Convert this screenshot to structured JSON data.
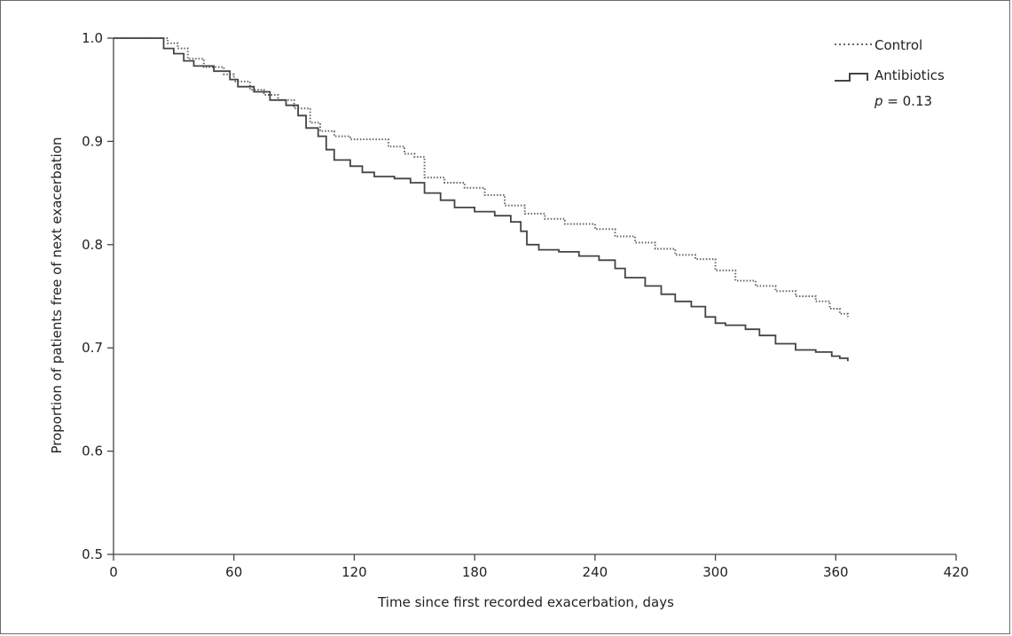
{
  "chart_data": {
    "type": "line",
    "title": "",
    "xlabel": "Time since first recorded exacerbation, days",
    "ylabel": "Proportion of patients free of next exacerbation",
    "xlim": [
      0,
      420
    ],
    "ylim": [
      0.5,
      1.0
    ],
    "x_ticks": [
      0,
      60,
      120,
      180,
      240,
      300,
      360,
      420
    ],
    "y_ticks": [
      0.5,
      0.6,
      0.7,
      0.8,
      0.9,
      1.0
    ],
    "x_tick_labels": [
      "0",
      "60",
      "120",
      "180",
      "240",
      "300",
      "360",
      "420"
    ],
    "y_tick_labels": [
      "0.5",
      "0.6",
      "0.7",
      "0.8",
      "0.9",
      "1.0"
    ],
    "grid": false,
    "legend_position": "top-right",
    "annotation": {
      "italic": "p",
      "text": " = 0.13"
    },
    "series": [
      {
        "name": "Control",
        "style": "dotted",
        "color": "#666666",
        "points": [
          [
            0,
            1.0
          ],
          [
            22,
            1.0
          ],
          [
            27,
            0.995
          ],
          [
            32,
            0.99
          ],
          [
            37,
            0.98
          ],
          [
            45,
            0.972
          ],
          [
            55,
            0.965
          ],
          [
            60,
            0.958
          ],
          [
            68,
            0.95
          ],
          [
            75,
            0.945
          ],
          [
            82,
            0.94
          ],
          [
            90,
            0.932
          ],
          [
            98,
            0.918
          ],
          [
            103,
            0.91
          ],
          [
            110,
            0.905
          ],
          [
            118,
            0.902
          ],
          [
            133,
            0.902
          ],
          [
            137,
            0.895
          ],
          [
            145,
            0.888
          ],
          [
            150,
            0.885
          ],
          [
            155,
            0.865
          ],
          [
            165,
            0.86
          ],
          [
            175,
            0.855
          ],
          [
            185,
            0.848
          ],
          [
            195,
            0.838
          ],
          [
            205,
            0.83
          ],
          [
            215,
            0.825
          ],
          [
            225,
            0.82
          ],
          [
            240,
            0.815
          ],
          [
            250,
            0.808
          ],
          [
            260,
            0.802
          ],
          [
            270,
            0.796
          ],
          [
            280,
            0.79
          ],
          [
            290,
            0.786
          ],
          [
            300,
            0.775
          ],
          [
            310,
            0.765
          ],
          [
            320,
            0.76
          ],
          [
            330,
            0.755
          ],
          [
            340,
            0.75
          ],
          [
            350,
            0.745
          ],
          [
            357,
            0.738
          ],
          [
            362,
            0.733
          ],
          [
            366,
            0.73
          ]
        ]
      },
      {
        "name": "Antibiotics",
        "style": "solid",
        "color": "#444444",
        "points": [
          [
            0,
            1.0
          ],
          [
            20,
            1.0
          ],
          [
            25,
            0.99
          ],
          [
            30,
            0.985
          ],
          [
            35,
            0.978
          ],
          [
            40,
            0.973
          ],
          [
            50,
            0.968
          ],
          [
            58,
            0.96
          ],
          [
            62,
            0.953
          ],
          [
            70,
            0.948
          ],
          [
            78,
            0.94
          ],
          [
            86,
            0.935
          ],
          [
            92,
            0.925
          ],
          [
            96,
            0.913
          ],
          [
            102,
            0.905
          ],
          [
            106,
            0.892
          ],
          [
            110,
            0.882
          ],
          [
            118,
            0.876
          ],
          [
            124,
            0.87
          ],
          [
            130,
            0.866
          ],
          [
            140,
            0.864
          ],
          [
            148,
            0.86
          ],
          [
            155,
            0.85
          ],
          [
            163,
            0.843
          ],
          [
            170,
            0.836
          ],
          [
            180,
            0.832
          ],
          [
            190,
            0.828
          ],
          [
            198,
            0.822
          ],
          [
            203,
            0.813
          ],
          [
            206,
            0.8
          ],
          [
            212,
            0.795
          ],
          [
            222,
            0.793
          ],
          [
            232,
            0.789
          ],
          [
            242,
            0.785
          ],
          [
            250,
            0.777
          ],
          [
            255,
            0.768
          ],
          [
            265,
            0.76
          ],
          [
            273,
            0.752
          ],
          [
            280,
            0.745
          ],
          [
            288,
            0.74
          ],
          [
            295,
            0.73
          ],
          [
            300,
            0.724
          ],
          [
            305,
            0.722
          ],
          [
            315,
            0.718
          ],
          [
            322,
            0.712
          ],
          [
            330,
            0.704
          ],
          [
            340,
            0.698
          ],
          [
            350,
            0.696
          ],
          [
            358,
            0.692
          ],
          [
            362,
            0.69
          ],
          [
            366,
            0.687
          ]
        ]
      }
    ]
  }
}
